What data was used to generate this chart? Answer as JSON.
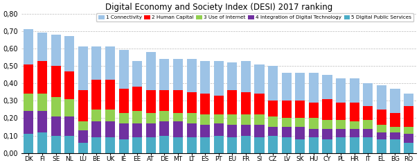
{
  "title": "Digital Economy and Society Index (DESI) 2017 ranking",
  "countries": [
    "DK",
    "FI",
    "SE",
    "NL",
    "LU",
    "BE",
    "UK",
    "IE",
    "EE",
    "AT",
    "DE",
    "MT",
    "LT",
    "ES",
    "PT",
    "EU",
    "FR",
    "SI",
    "CZ",
    "LV",
    "SK",
    "HU",
    "CY",
    "PL",
    "HR",
    "IT",
    "EL",
    "BG",
    "RO"
  ],
  "digital_ps": [
    0.11,
    0.12,
    0.1,
    0.1,
    0.06,
    0.09,
    0.09,
    0.08,
    0.09,
    0.09,
    0.1,
    0.09,
    0.09,
    0.09,
    0.1,
    0.09,
    0.1,
    0.09,
    0.1,
    0.09,
    0.08,
    0.09,
    0.08,
    0.09,
    0.09,
    0.09,
    0.08,
    0.08,
    0.06
  ],
  "integration": [
    0.13,
    0.12,
    0.11,
    0.11,
    0.07,
    0.09,
    0.09,
    0.09,
    0.08,
    0.08,
    0.08,
    0.09,
    0.08,
    0.07,
    0.07,
    0.07,
    0.06,
    0.07,
    0.05,
    0.06,
    0.07,
    0.05,
    0.06,
    0.05,
    0.05,
    0.05,
    0.04,
    0.04,
    0.05
  ],
  "use_of_internet": [
    0.1,
    0.1,
    0.11,
    0.1,
    0.05,
    0.07,
    0.07,
    0.06,
    0.07,
    0.06,
    0.06,
    0.05,
    0.06,
    0.06,
    0.05,
    0.06,
    0.06,
    0.06,
    0.06,
    0.05,
    0.05,
    0.06,
    0.05,
    0.05,
    0.04,
    0.05,
    0.04,
    0.03,
    0.04
  ],
  "human_capital": [
    0.17,
    0.19,
    0.18,
    0.16,
    0.18,
    0.17,
    0.17,
    0.14,
    0.14,
    0.13,
    0.12,
    0.13,
    0.12,
    0.12,
    0.11,
    0.14,
    0.13,
    0.12,
    0.09,
    0.1,
    0.1,
    0.09,
    0.12,
    0.1,
    0.11,
    0.08,
    0.09,
    0.08,
    0.12
  ],
  "connectivity": [
    0.2,
    0.16,
    0.18,
    0.2,
    0.25,
    0.19,
    0.19,
    0.22,
    0.15,
    0.22,
    0.18,
    0.18,
    0.19,
    0.19,
    0.2,
    0.16,
    0.18,
    0.17,
    0.2,
    0.16,
    0.16,
    0.17,
    0.14,
    0.14,
    0.14,
    0.13,
    0.14,
    0.14,
    0.07
  ],
  "colors": {
    "digital_ps": "#4BACC6",
    "integration": "#7030A0",
    "use_of_internet": "#92D050",
    "human_capital": "#FF0000",
    "connectivity": "#9DC3E6"
  },
  "legend_labels": [
    "1 Connectivity",
    "2 Human Capital",
    "3 Use of Internet",
    "4 Integration of Digital Technology",
    "5 Digital Public Services"
  ],
  "ylim": [
    0.0,
    0.8
  ],
  "yticks": [
    0.0,
    0.1,
    0.2,
    0.3,
    0.4,
    0.5,
    0.6,
    0.7,
    0.8
  ],
  "ytick_labels": [
    "0,00",
    "0,10",
    "0,20",
    "0,30",
    "0,40",
    "0,50",
    "0,60",
    "0,70",
    "0,80"
  ]
}
